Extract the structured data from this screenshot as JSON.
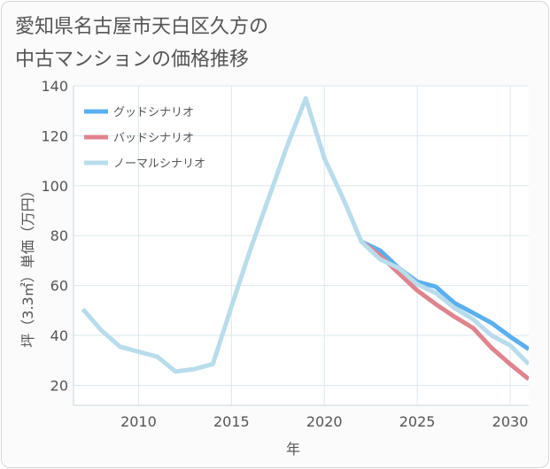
{
  "title_line1": "愛知県名古屋市天白区久方の",
  "title_line2": "中古マンションの価格推移",
  "chart_data": {
    "type": "line",
    "xlabel": "年",
    "ylabel": "坪（3.3㎡）単価（万円）",
    "xlim": [
      2006.5,
      2031
    ],
    "ylim": [
      12,
      140
    ],
    "xticks": [
      2010,
      2015,
      2020,
      2025,
      2030
    ],
    "yticks": [
      20,
      40,
      60,
      80,
      100,
      120,
      140
    ],
    "grid": true,
    "legend_position": "top-left",
    "series": [
      {
        "name": "グッドシナリオ",
        "color": "#5aafef",
        "x": [
          2022,
          2023,
          2024,
          2025,
          2026,
          2027,
          2028,
          2029,
          2030,
          2031
        ],
        "values": [
          77.5,
          74,
          67,
          61.5,
          59.5,
          53,
          49,
          45,
          39.5,
          34.5
        ]
      },
      {
        "name": "バッドシナリオ",
        "color": "#e0838d",
        "x": [
          2022,
          2023,
          2024,
          2025,
          2026,
          2027,
          2028,
          2029,
          2030,
          2031
        ],
        "values": [
          77.5,
          72,
          65,
          58,
          52.5,
          47.5,
          43,
          35,
          28.5,
          22.5
        ]
      },
      {
        "name": "ノーマルシナリオ",
        "color": "#b8dcec",
        "x": [
          2007,
          2008,
          2009,
          2010,
          2011,
          2012,
          2013,
          2014,
          2015,
          2016,
          2017,
          2018,
          2019,
          2020,
          2021,
          2022,
          2023,
          2024,
          2025,
          2026,
          2027,
          2028,
          2029,
          2030,
          2031
        ],
        "values": [
          50.5,
          42,
          35.5,
          33.5,
          31.5,
          25.5,
          26.5,
          28.5,
          51.5,
          74,
          95,
          116,
          135,
          111,
          95,
          77.5,
          70.5,
          67,
          60.5,
          57,
          51,
          46.5,
          40,
          36,
          28.5
        ]
      }
    ]
  }
}
